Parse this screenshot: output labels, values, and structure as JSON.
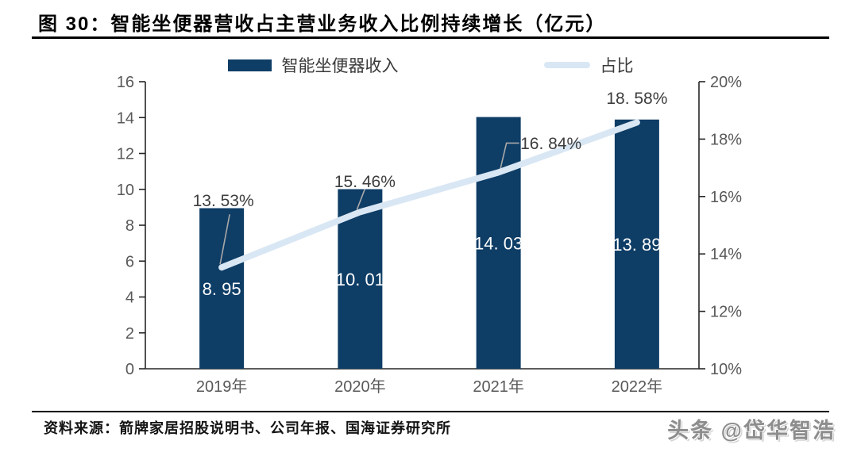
{
  "header": {
    "title": "图 30：智能坐便器营收占主营业务收入比例持续增长（亿元）"
  },
  "legend": {
    "bar_label": "智能坐便器收入",
    "line_label": "占比"
  },
  "chart_data": {
    "type": "combo-bar-line",
    "title": "图 30：智能坐便器营收占主营业务收入比例持续增长（亿元）",
    "categories": [
      "2019年",
      "2020年",
      "2021年",
      "2022年"
    ],
    "series": [
      {
        "name": "智能坐便器收入",
        "type": "bar",
        "axis": "left",
        "values": [
          8.95,
          10.01,
          14.03,
          13.89
        ],
        "value_labels": [
          "8. 95",
          "10. 01",
          "14. 03",
          "13. 89"
        ],
        "color": "#0e3d66"
      },
      {
        "name": "占比",
        "type": "line",
        "axis": "right",
        "values": [
          13.53,
          15.46,
          16.84,
          18.58
        ],
        "value_labels": [
          "13. 53%",
          "15. 46%",
          "16. 84%",
          "18. 58%"
        ],
        "color": "#d9e7f4"
      }
    ],
    "left_axis": {
      "min": 0,
      "max": 16,
      "step": 2,
      "tick_labels": [
        "0",
        "2",
        "4",
        "6",
        "8",
        "10",
        "12",
        "14",
        "16"
      ]
    },
    "right_axis": {
      "min": 10,
      "max": 20,
      "step": 2,
      "tick_labels": [
        "10%",
        "12%",
        "14%",
        "16%",
        "18%",
        "20%"
      ]
    },
    "grid": false,
    "legend_position": "top"
  },
  "colors": {
    "bar": "#0e3d66",
    "line": "#d9e7f4",
    "axis": "#262626",
    "tick_label": "#595959",
    "percent_label": "#3d3d3d",
    "bar_value_label": "#ffffff",
    "leader_line": "#a9a9a9"
  },
  "footer": {
    "source": "资料来源：箭牌家居招股说明书、公司年报、国海证券研究所",
    "watermark": "头条 @岱华智浩"
  }
}
